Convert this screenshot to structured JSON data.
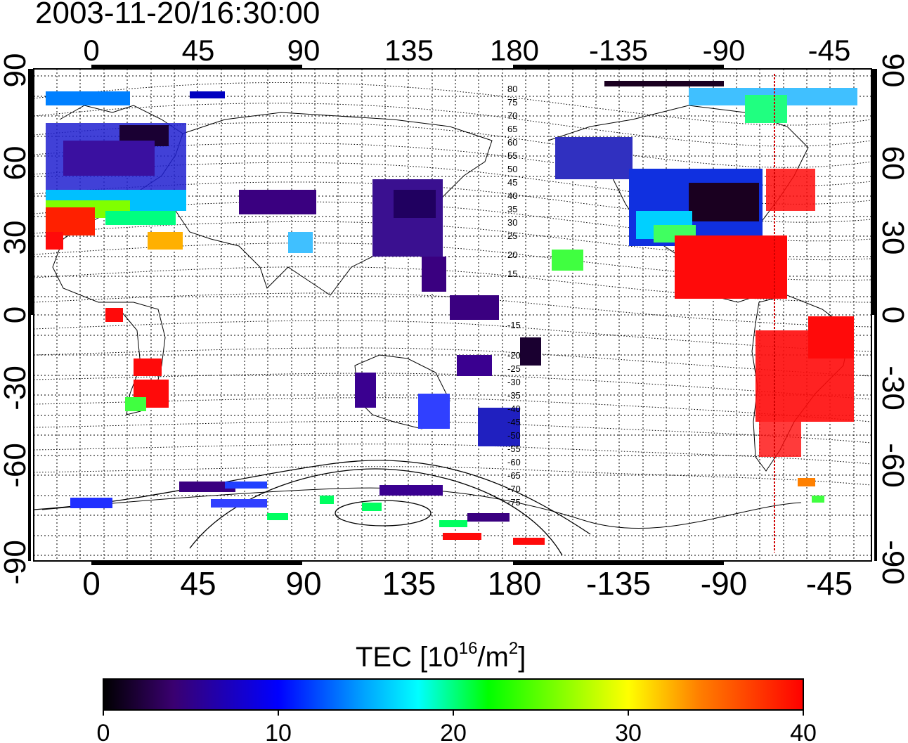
{
  "title": "2003-11-20/16:30:00",
  "map": {
    "x_ticks": [
      "0",
      "45",
      "90",
      "135",
      "180",
      "-135",
      "-90",
      "-45"
    ],
    "y_ticks": [
      "90",
      "60",
      "30",
      "0",
      "-30",
      "-60",
      "-90"
    ],
    "contour_labels_north": [
      "80",
      "75",
      "70",
      "65",
      "60",
      "55",
      "50",
      "45",
      "40",
      "35",
      "30",
      "25",
      "20",
      "15"
    ],
    "contour_labels_south": [
      "-15",
      "-20",
      "-25",
      "-30",
      "-35",
      "-40",
      "-45",
      "-50",
      "-55",
      "-60",
      "-65",
      "-70",
      "-75"
    ],
    "terminator_color": "#d00000",
    "coast_color": "#000000"
  },
  "colorbar": {
    "label_main": "TEC  [10",
    "label_sup1": "16",
    "label_mid": "/m",
    "label_sup2": "2",
    "label_end": "]",
    "ticks": [
      "0",
      "10",
      "20",
      "30",
      "40"
    ],
    "stops": [
      "#000000",
      "#3a0070",
      "#0000ff",
      "#00ffff",
      "#00ff00",
      "#ffff00",
      "#ff8000",
      "#ff0000"
    ]
  }
}
